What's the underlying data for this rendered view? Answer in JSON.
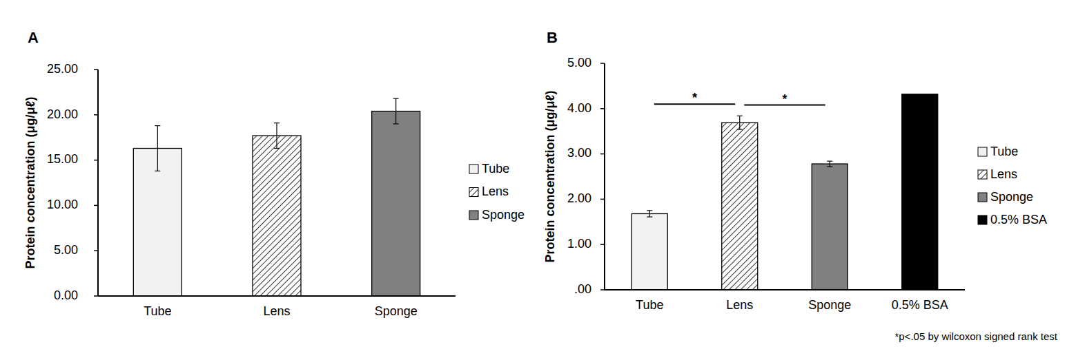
{
  "chart_data": [
    {
      "type": "bar",
      "title": "A",
      "y_label": "Protein concentration (μg/μℓ)",
      "categories": [
        "Tube",
        "Lens",
        "Sponge"
      ],
      "series": [
        {
          "name": "Tube",
          "color": "#f2f2f2",
          "values": [
            16.3,
            null,
            null
          ],
          "errors": [
            2.5,
            null,
            null
          ]
        },
        {
          "name": "Lens",
          "color": "#000000",
          "line_style": "hatched",
          "values": [
            null,
            17.7,
            null
          ],
          "errors": [
            null,
            1.4,
            null
          ]
        },
        {
          "name": "Sponge",
          "color": "#808080",
          "values": [
            null,
            null,
            20.4
          ],
          "errors": [
            null,
            null,
            1.4
          ]
        }
      ],
      "ylim": [
        0,
        25
      ],
      "yticks": [
        {
          "value": 0,
          "label": "0.00"
        },
        {
          "value": 5,
          "label": "5.00"
        },
        {
          "value": 10,
          "label": "10.00"
        },
        {
          "value": 15,
          "label": "15.00"
        },
        {
          "value": 20,
          "label": "20.00"
        },
        {
          "value": 25,
          "label": "25.00"
        }
      ],
      "legend": "right",
      "grid": false
    },
    {
      "type": "bar",
      "title": "B",
      "y_label": "Protein concentration (μg/μℓ)",
      "categories": [
        "Tube",
        "Lens",
        "Sponge",
        "0.5% BSA"
      ],
      "series": [
        {
          "name": "Tube",
          "color": "#f2f2f2",
          "values": [
            1.68,
            null,
            null,
            null
          ],
          "errors": [
            0.07,
            null,
            null,
            null
          ]
        },
        {
          "name": "Lens",
          "color": "#000000",
          "line_style": "hatched",
          "values": [
            null,
            3.69,
            null,
            null
          ],
          "errors": [
            null,
            0.15,
            null,
            null
          ]
        },
        {
          "name": "Sponge",
          "color": "#808080",
          "values": [
            null,
            null,
            2.78,
            null
          ],
          "errors": [
            null,
            null,
            0.06,
            null
          ]
        },
        {
          "name": "0.5% BSA",
          "color": "#000000",
          "values": [
            null,
            null,
            null,
            4.32
          ],
          "errors": [
            null,
            null,
            null,
            null
          ]
        }
      ],
      "ylim": [
        0,
        5
      ],
      "yticks": [
        {
          "value": 0,
          "label": ".00"
        },
        {
          "value": 1,
          "label": "1.00"
        },
        {
          "value": 2,
          "label": "2.00"
        },
        {
          "value": 3,
          "label": "3.00"
        },
        {
          "value": 4,
          "label": "4.00"
        },
        {
          "value": 5,
          "label": "5.00"
        }
      ],
      "annotations": [
        {
          "text": "*",
          "from": 0,
          "to": 1,
          "y": 4.1
        },
        {
          "text": "*",
          "from": 1,
          "to": 2,
          "y": 4.08
        }
      ],
      "note": "*p<.05 by wilcoxon signed rank test",
      "legend": "right",
      "grid": false
    }
  ]
}
